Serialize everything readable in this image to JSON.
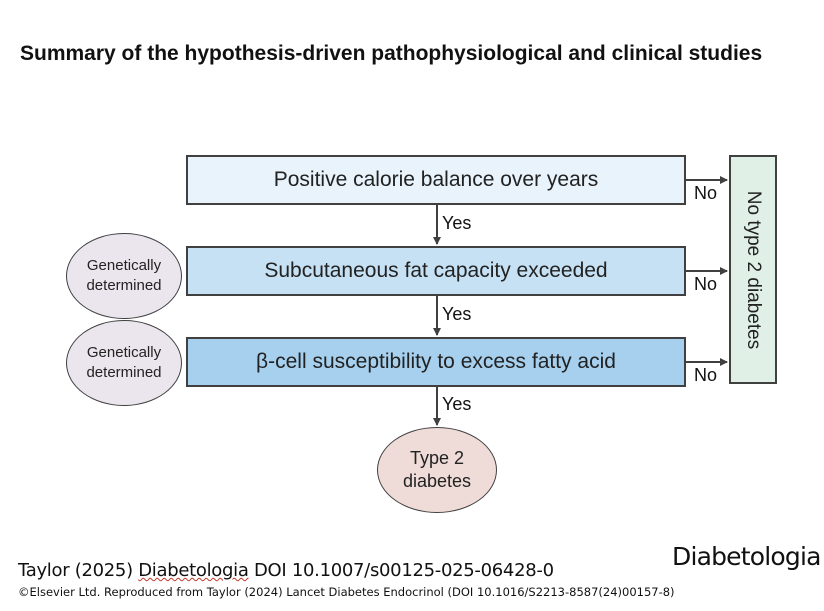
{
  "title": "Summary of the hypothesis-driven pathophysiological and clinical studies",
  "boxes": [
    {
      "label": "Positive calorie balance over years"
    },
    {
      "label": "Subcutaneous fat capacity exceeded"
    },
    {
      "label": "β-cell susceptibility to excess fatty acid"
    }
  ],
  "side_ovals": [
    {
      "line1": "Genetically",
      "line2": "determined"
    },
    {
      "line1": "Genetically",
      "line2": "determined"
    }
  ],
  "yes_labels": [
    "Yes",
    "Yes",
    "Yes"
  ],
  "no_labels": [
    "No",
    "No",
    "No"
  ],
  "outcome_yes": {
    "line1": "Type 2",
    "line2": "diabetes"
  },
  "outcome_no": "No type 2 diabetes",
  "colors": {
    "box1": "#e8f3fb",
    "box2": "#c6e1f4",
    "box3": "#a6d0ee",
    "genetic_oval": "#ebe6ee",
    "type2_oval": "#efdcd8",
    "no_diabetes_box": "#e0f0e6"
  },
  "footer": {
    "citation_author": "Taylor (2025) ",
    "citation_journal": "Diabetologia",
    "citation_doi": " DOI 10.1007/s00125-025-06428-0",
    "copyright": "©Elsevier Ltd. Reproduced from Taylor (2024) Lancet Diabetes Endocrinol (DOI 10.1016/S2213-8587(24)00157-8)",
    "brand": "Diabetologia"
  }
}
